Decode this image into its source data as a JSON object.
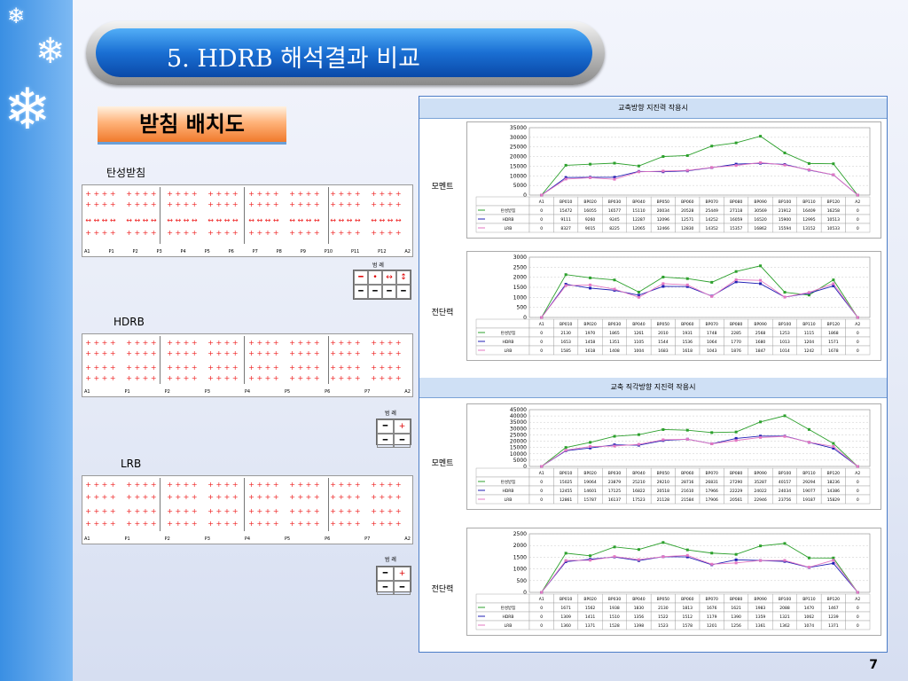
{
  "title": "5. HDRB 해석결과 비교",
  "section_heading": "받침 배치도",
  "page_number": "7",
  "layouts": [
    {
      "name": "elastic",
      "label": "탄성받침",
      "piers": [
        "A1",
        "P1",
        "P2",
        "P3",
        "P4",
        "P5",
        "P6",
        "P7",
        "P8",
        "P9",
        "P10",
        "P11",
        "P12",
        "A2"
      ],
      "legend_title": "범 례"
    },
    {
      "name": "hdrb",
      "label": "HDRB",
      "piers": [
        "A1",
        "P1",
        "P2",
        "P3",
        "P4",
        "P5",
        "P6",
        "P7",
        "A2"
      ],
      "legend_title": "범 례"
    },
    {
      "name": "lrb",
      "label": "LRB",
      "piers": [
        "A1",
        "P1",
        "P2",
        "P3",
        "P4",
        "P5",
        "P6",
        "P7",
        "A2"
      ],
      "legend_title": "범 례"
    }
  ],
  "panels": [
    {
      "title": "교축방향 지진력 작용시",
      "rows": [
        "모멘트",
        "전단력"
      ]
    },
    {
      "title": "교축 직각방향 지진력 작용시",
      "rows": [
        "모멘트",
        "전단력"
      ]
    }
  ],
  "chart_data": [
    {
      "type": "line",
      "title": "",
      "categories": [
        "A1",
        "BP010",
        "BP020",
        "BP030",
        "BP040",
        "BP050",
        "BP060",
        "BP070",
        "BP080",
        "BP090",
        "BP100",
        "BP110",
        "BP120",
        "A2"
      ],
      "ylim": [
        0,
        35000
      ],
      "yticks": [
        0,
        5000,
        10000,
        15000,
        20000,
        25000,
        30000,
        35000
      ],
      "series": [
        {
          "name": "탄성받침",
          "color": "#2ca02c",
          "values": [
            0,
            15472,
            16055,
            16577,
            15110,
            20034,
            20528,
            25449,
            27118,
            30569,
            21912,
            16409,
            16258,
            0
          ]
        },
        {
          "name": "HDRB",
          "color": "#1f1fb4",
          "values": [
            0,
            9111,
            9260,
            9245,
            12287,
            12096,
            12571,
            14252,
            16059,
            16520,
            15900,
            12995,
            10513,
            0
          ]
        },
        {
          "name": "LRB",
          "color": "#e377c2",
          "values": [
            0,
            8327,
            9015,
            8225,
            12065,
            12466,
            12830,
            14352,
            15357,
            16862,
            15594,
            13152,
            10533,
            0
          ]
        }
      ]
    },
    {
      "type": "line",
      "title": "",
      "categories": [
        "A1",
        "BP010",
        "BP020",
        "BP030",
        "BP040",
        "BP050",
        "BP060",
        "BP070",
        "BP080",
        "BP090",
        "BP100",
        "BP110",
        "BP120",
        "A2"
      ],
      "ylim": [
        0,
        3000
      ],
      "yticks": [
        0,
        500,
        1000,
        1500,
        2000,
        2500,
        3000
      ],
      "series": [
        {
          "name": "탄성받침",
          "color": "#2ca02c",
          "values": [
            0,
            2130,
            1970,
            1865,
            1261,
            2010,
            1931,
            1748,
            2285,
            2568,
            1253,
            1115,
            1868,
            0
          ]
        },
        {
          "name": "HDRB",
          "color": "#1f1fb4",
          "values": [
            0,
            1653,
            1458,
            1351,
            1105,
            1544,
            1536,
            1064,
            1770,
            1680,
            1013,
            1204,
            1571,
            0
          ]
        },
        {
          "name": "LRB",
          "color": "#e377c2",
          "values": [
            0,
            1585,
            1618,
            1408,
            1004,
            1683,
            1618,
            1043,
            1876,
            1847,
            1014,
            1242,
            1678,
            0
          ]
        }
      ]
    },
    {
      "type": "line",
      "title": "",
      "categories": [
        "A1",
        "BP010",
        "BP020",
        "BP030",
        "BP040",
        "BP050",
        "BP060",
        "BP070",
        "BP080",
        "BP090",
        "BP100",
        "BP110",
        "BP120",
        "A2"
      ],
      "ylim": [
        0,
        45000
      ],
      "yticks": [
        0,
        5000,
        10000,
        15000,
        20000,
        25000,
        30000,
        35000,
        40000,
        45000
      ],
      "series": [
        {
          "name": "탄성받침",
          "color": "#2ca02c",
          "values": [
            0,
            15025,
            19064,
            23879,
            25210,
            29210,
            28716,
            26831,
            27290,
            35287,
            40157,
            29294,
            18236,
            0
          ]
        },
        {
          "name": "HDRB",
          "color": "#1f1fb4",
          "values": [
            0,
            12455,
            14601,
            17125,
            16822,
            20518,
            21610,
            17966,
            22229,
            24022,
            24034,
            19077,
            14386,
            0
          ]
        },
        {
          "name": "LRB",
          "color": "#e377c2",
          "values": [
            0,
            12861,
            15787,
            16137,
            17523,
            21128,
            21584,
            17906,
            20561,
            22946,
            23756,
            19187,
            15829,
            0
          ]
        }
      ]
    },
    {
      "type": "line",
      "title": "",
      "categories": [
        "A1",
        "BP010",
        "BP020",
        "BP030",
        "BP040",
        "BP050",
        "BP060",
        "BP070",
        "BP080",
        "BP090",
        "BP100",
        "BP110",
        "BP120",
        "A2"
      ],
      "ylim": [
        0,
        2500
      ],
      "yticks": [
        0,
        500,
        1000,
        1500,
        2000,
        2500
      ],
      "series": [
        {
          "name": "탄성받침",
          "color": "#2ca02c",
          "values": [
            0,
            1671,
            1562,
            1938,
            1830,
            2130,
            1813,
            1676,
            1621,
            1983,
            2088,
            1470,
            1467,
            0
          ]
        },
        {
          "name": "HDRB",
          "color": "#1f1fb4",
          "values": [
            0,
            1309,
            1411,
            1510,
            1356,
            1522,
            1512,
            1179,
            1390,
            1359,
            1321,
            1062,
            1239,
            0
          ]
        },
        {
          "name": "LRB",
          "color": "#e377c2",
          "values": [
            0,
            1360,
            1371,
            1528,
            1398,
            1523,
            1578,
            1201,
            1256,
            1361,
            1362,
            1074,
            1371,
            0
          ]
        }
      ]
    }
  ]
}
